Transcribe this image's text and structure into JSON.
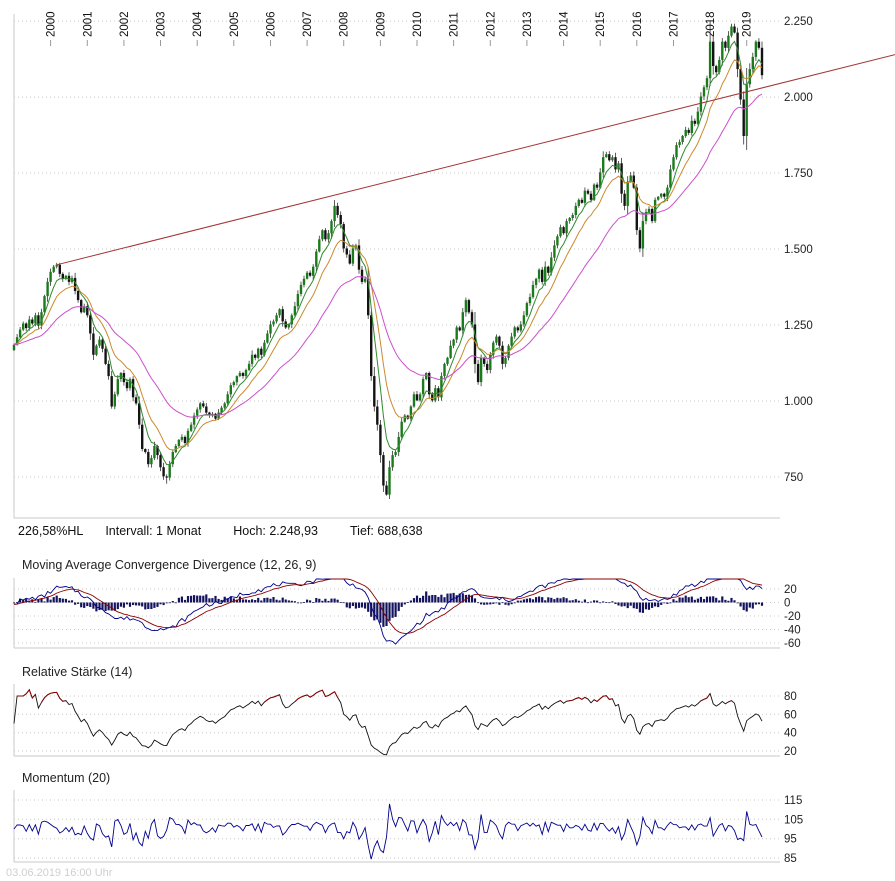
{
  "page": {
    "footer_timestamp": "03.06.2019 16:00 Uhr"
  },
  "stats": {
    "hl_percent": "226,58%HL",
    "interval": "Intervall: 1 Monat",
    "hoch": "Hoch: 2.248,93",
    "tief": "Tief: 688,638"
  },
  "chart_data": {
    "type": "candlestick",
    "interval": "1 Monat",
    "start_month": "1999-01",
    "high_value": 2248.93,
    "low_value": 688.638,
    "range_percent_hl": "226,58%HL",
    "years_axis": [
      "2000",
      "2001",
      "2002",
      "2003",
      "2004",
      "2005",
      "2006",
      "2007",
      "2008",
      "2009",
      "2010",
      "2011",
      "2012",
      "2013",
      "2014",
      "2015",
      "2016",
      "2017",
      "2018",
      "2019"
    ],
    "price_ticks": [
      {
        "value": 2250,
        "label": "2.250"
      },
      {
        "value": 2000,
        "label": "2.000"
      },
      {
        "value": 1750,
        "label": "1.750"
      },
      {
        "value": 1500,
        "label": "1.500"
      },
      {
        "value": 1250,
        "label": "1.250"
      },
      {
        "value": 1000,
        "label": "1.000"
      },
      {
        "value": 750,
        "label": "750"
      }
    ],
    "closes": [
      1185,
      1210,
      1235,
      1255,
      1240,
      1268,
      1255,
      1282,
      1248,
      1292,
      1345,
      1392,
      1425,
      1442,
      1448,
      1418,
      1402,
      1412,
      1392,
      1405,
      1362,
      1332,
      1292,
      1312,
      1282,
      1222,
      1152,
      1182,
      1202,
      1172,
      1122,
      1082,
      982,
      1022,
      1072,
      1092,
      1062,
      1042,
      1072,
      1012,
      992,
      922,
      842,
      832,
      792,
      812,
      852,
      822,
      782,
      752,
      748,
      792,
      832,
      852,
      872,
      882,
      862,
      902,
      922,
      952,
      972,
      992,
      982,
      962,
      952,
      958,
      942,
      962,
      978,
      992,
      1022,
      1052,
      1062,
      1082,
      1092,
      1082,
      1102,
      1122,
      1152,
      1142,
      1172,
      1152,
      1192,
      1222,
      1252,
      1262,
      1282,
      1302,
      1262,
      1242,
      1252,
      1282,
      1312,
      1352,
      1382,
      1402,
      1422,
      1412,
      1442,
      1492,
      1532,
      1562,
      1532,
      1552,
      1592,
      1642,
      1612,
      1582,
      1502,
      1482,
      1452,
      1502,
      1512,
      1432,
      1392,
      1402,
      1282,
      1082,
      982,
      922,
      822,
      722,
      692,
      782,
      822,
      832,
      882,
      932,
      952,
      942,
      982,
      1022,
      1002,
      1022,
      1072,
      1092,
      1022,
      1002,
      1042,
      1012,
      1082,
      1122,
      1142,
      1182,
      1202,
      1242,
      1232,
      1292,
      1332,
      1292,
      1252,
      1122,
      1062,
      1142,
      1122,
      1102,
      1152,
      1192,
      1212,
      1182,
      1122,
      1142,
      1182,
      1212,
      1242,
      1232,
      1252,
      1282,
      1322,
      1342,
      1382,
      1402,
      1432,
      1392,
      1442,
      1422,
      1472,
      1512,
      1542,
      1572,
      1552,
      1592,
      1602,
      1612,
      1642,
      1662,
      1652,
      1692,
      1682,
      1662,
      1712,
      1702,
      1752,
      1802,
      1812,
      1792,
      1802,
      1762,
      1782,
      1682,
      1642,
      1722,
      1742,
      1702,
      1562,
      1502,
      1592,
      1622,
      1632,
      1592,
      1662,
      1672,
      1682,
      1672,
      1702,
      1762,
      1802,
      1842,
      1852,
      1872,
      1892,
      1882,
      1922,
      1912,
      1952,
      2002,
      2032,
      2062,
      2182,
      2102,
      2082,
      2122,
      2182,
      2162,
      2202,
      2232,
      2212,
      2092,
      1992,
      1872,
      2042,
      2092,
      2132,
      2182,
      2162,
      2072
    ],
    "extremes": {
      "high_overrides": {
        "228": 2248.93
      },
      "low_overrides": {
        "50": 728,
        "122": 688.638
      }
    },
    "trendline": {
      "start_index": 14,
      "start_value": 1448,
      "end_index": 245,
      "end_value": 2030,
      "extends_past_plot": true,
      "color": "#a33333"
    },
    "moving_averages": [
      {
        "name": "short",
        "period": 6,
        "color": "#2e8b2e"
      },
      {
        "name": "medium",
        "period": 12,
        "color": "#cc8a2e"
      },
      {
        "name": "long",
        "period": 32,
        "color": "#cc4fcc"
      }
    ],
    "colors": {
      "up": "#1b7a1b",
      "down": "#141414",
      "wick": "#333333",
      "grid": "#c9c9c9",
      "axis_text": "#222222"
    },
    "indicators": [
      {
        "id": "macd",
        "title": "Moving Average Convergence Divergence (12, 26, 9)",
        "params": [
          12,
          26,
          9
        ],
        "ticks": [
          {
            "value": 20,
            "label": "20"
          },
          {
            "value": 0,
            "label": "0"
          },
          {
            "value": -20,
            "label": "-20"
          },
          {
            "value": -40,
            "label": "-40"
          },
          {
            "value": -60,
            "label": "-60"
          }
        ],
        "colors": {
          "macd": "#00008b",
          "signal": "#8b0000",
          "histogram": "#14145e"
        }
      },
      {
        "id": "rsi",
        "title": "Relative Stärke (14)",
        "period": 14,
        "ticks": [
          {
            "value": 80,
            "label": "80"
          },
          {
            "value": 60,
            "label": "60"
          },
          {
            "value": 40,
            "label": "40"
          },
          {
            "value": 20,
            "label": "20"
          }
        ],
        "colors": {
          "line": "#111111",
          "overbought": "#8b0000"
        }
      },
      {
        "id": "momentum",
        "title": "Momentum (20)",
        "period": 20,
        "ticks": [
          {
            "value": 115,
            "label": "115"
          },
          {
            "value": 105,
            "label": "105"
          },
          {
            "value": 95,
            "label": "95"
          },
          {
            "value": 85,
            "label": "85"
          }
        ],
        "colors": {
          "line": "#00008b"
        }
      }
    ]
  }
}
